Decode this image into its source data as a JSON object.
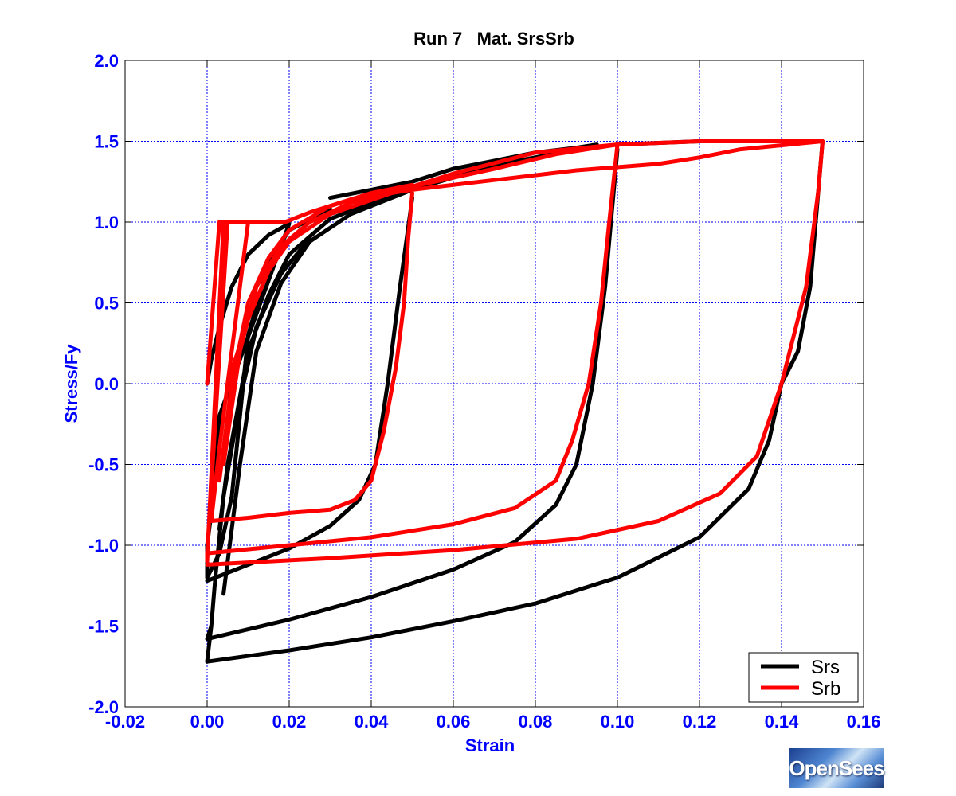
{
  "chart_data": {
    "type": "line",
    "title": "Run 7   Mat. SrsSrb",
    "xlabel": "Strain",
    "ylabel": "Stress/Fy",
    "xlim": [
      -0.02,
      0.16
    ],
    "ylim": [
      -2.0,
      2.0
    ],
    "xticks": [
      -0.02,
      0.0,
      0.02,
      0.04,
      0.06,
      0.08,
      0.1,
      0.12,
      0.14,
      0.16
    ],
    "xtick_labels": [
      "-0.02",
      "0.00",
      "0.02",
      "0.04",
      "0.06",
      "0.08",
      "0.10",
      "0.12",
      "0.14",
      "0.16"
    ],
    "yticks": [
      -2.0,
      -1.5,
      -1.0,
      -0.5,
      0.0,
      0.5,
      1.0,
      1.5,
      2.0
    ],
    "ytick_labels": [
      "-2.0",
      "-1.5",
      "-1.0",
      "-0.5",
      "0.0",
      "0.5",
      "1.0",
      "1.5",
      "2.0"
    ],
    "grid": true,
    "legend_position": "bottom-right",
    "series": [
      {
        "name": "Srs",
        "color": "#000000",
        "segments": [
          [
            [
              0.0,
              0.0
            ],
            [
              0.001,
              0.15
            ],
            [
              0.003,
              0.35
            ],
            [
              0.006,
              0.6
            ],
            [
              0.01,
              0.8
            ],
            [
              0.015,
              0.92
            ],
            [
              0.02,
              0.99
            ],
            [
              0.003,
              -0.2
            ],
            [
              0.001,
              -0.8
            ],
            [
              0.0,
              -1.0
            ],
            [
              0.0,
              -1.12
            ],
            [
              0.0,
              -1.2
            ],
            [
              0.003,
              -1.05
            ],
            [
              0.006,
              -0.7
            ],
            [
              0.01,
              0.3
            ],
            [
              0.015,
              0.75
            ],
            [
              0.02,
              0.95
            ],
            [
              0.03,
              1.08
            ]
          ],
          [
            [
              0.0,
              -1.22
            ],
            [
              0.01,
              -1.12
            ],
            [
              0.02,
              -1.02
            ],
            [
              0.03,
              -0.88
            ],
            [
              0.037,
              -0.72
            ],
            [
              0.041,
              -0.5
            ],
            [
              0.044,
              0.0
            ],
            [
              0.047,
              0.6
            ],
            [
              0.05,
              1.15
            ]
          ],
          [
            [
              0.03,
              1.15
            ],
            [
              0.04,
              1.2
            ],
            [
              0.05,
              1.25
            ],
            [
              0.06,
              1.33
            ],
            [
              0.07,
              1.38
            ],
            [
              0.08,
              1.43
            ],
            [
              0.09,
              1.46
            ],
            [
              0.095,
              1.48
            ]
          ],
          [
            [
              0.003,
              -0.9
            ],
            [
              0.005,
              -0.5
            ],
            [
              0.01,
              0.2
            ],
            [
              0.015,
              0.55
            ],
            [
              0.02,
              0.8
            ],
            [
              0.03,
              1.02
            ],
            [
              0.04,
              1.12
            ],
            [
              0.05,
              1.22
            ]
          ],
          [
            [
              0.001,
              -1.5
            ],
            [
              0.0,
              -1.58
            ],
            [
              0.02,
              -1.46
            ],
            [
              0.04,
              -1.32
            ],
            [
              0.06,
              -1.15
            ],
            [
              0.075,
              -0.98
            ],
            [
              0.085,
              -0.75
            ],
            [
              0.09,
              -0.5
            ],
            [
              0.094,
              0.0
            ],
            [
              0.097,
              0.6
            ],
            [
              0.1,
              1.45
            ]
          ],
          [
            [
              0.004,
              -1.3
            ],
            [
              0.008,
              -0.5
            ],
            [
              0.012,
              0.2
            ],
            [
              0.018,
              0.62
            ],
            [
              0.025,
              0.88
            ],
            [
              0.035,
              1.05
            ],
            [
              0.05,
              1.2
            ],
            [
              0.07,
              1.35
            ],
            [
              0.09,
              1.45
            ],
            [
              0.1,
              1.48
            ],
            [
              0.12,
              1.5
            ],
            [
              0.15,
              1.5
            ]
          ],
          [
            [
              0.15,
              1.5
            ],
            [
              0.149,
              1.2
            ],
            [
              0.147,
              0.6
            ],
            [
              0.144,
              0.2
            ],
            [
              0.14,
              0.0
            ],
            [
              0.137,
              -0.35
            ],
            [
              0.132,
              -0.65
            ],
            [
              0.12,
              -0.95
            ],
            [
              0.1,
              -1.2
            ],
            [
              0.08,
              -1.36
            ],
            [
              0.06,
              -1.47
            ],
            [
              0.04,
              -1.57
            ],
            [
              0.02,
              -1.65
            ],
            [
              0.0,
              -1.72
            ]
          ],
          [
            [
              0.0,
              -1.72
            ],
            [
              0.001,
              -1.5
            ],
            [
              0.002,
              -1.2
            ],
            [
              0.004,
              -0.7
            ],
            [
              0.008,
              -0.1
            ],
            [
              0.012,
              0.35
            ],
            [
              0.018,
              0.68
            ],
            [
              0.025,
              0.9
            ]
          ]
        ]
      },
      {
        "name": "Srb",
        "color": "#ff0000",
        "segments": [
          [
            [
              0.0,
              0.0
            ],
            [
              0.003,
              1.0
            ],
            [
              0.005,
              1.0
            ],
            [
              0.0,
              -1.05
            ],
            [
              0.0,
              -1.1
            ],
            [
              0.004,
              1.0
            ],
            [
              0.01,
              1.0
            ],
            [
              0.012,
              1.0
            ],
            [
              0.019,
              1.0
            ]
          ],
          [
            [
              0.01,
              1.0
            ],
            [
              0.003,
              -0.4
            ],
            [
              0.001,
              -0.85
            ],
            [
              0.01,
              -0.83
            ],
            [
              0.02,
              -0.8
            ],
            [
              0.03,
              -0.78
            ],
            [
              0.036,
              -0.72
            ],
            [
              0.04,
              -0.6
            ],
            [
              0.043,
              -0.3
            ],
            [
              0.046,
              0.1
            ],
            [
              0.048,
              0.5
            ],
            [
              0.049,
              0.9
            ],
            [
              0.05,
              1.18
            ]
          ],
          [
            [
              0.0,
              -1.05
            ],
            [
              0.02,
              -1.0
            ],
            [
              0.04,
              -0.95
            ],
            [
              0.06,
              -0.87
            ],
            [
              0.075,
              -0.77
            ],
            [
              0.085,
              -0.6
            ],
            [
              0.089,
              -0.35
            ],
            [
              0.093,
              0.0
            ],
            [
              0.096,
              0.5
            ],
            [
              0.098,
              1.0
            ],
            [
              0.1,
              1.48
            ]
          ],
          [
            [
              0.0,
              -1.12
            ],
            [
              0.03,
              -1.08
            ],
            [
              0.06,
              -1.03
            ],
            [
              0.09,
              -0.96
            ],
            [
              0.11,
              -0.85
            ],
            [
              0.125,
              -0.68
            ],
            [
              0.134,
              -0.45
            ],
            [
              0.14,
              0.0
            ],
            [
              0.146,
              0.6
            ],
            [
              0.149,
              1.2
            ],
            [
              0.15,
              1.5
            ]
          ],
          [
            [
              0.019,
              1.0
            ],
            [
              0.025,
              1.06
            ],
            [
              0.035,
              1.14
            ],
            [
              0.05,
              1.2
            ],
            [
              0.07,
              1.26
            ],
            [
              0.09,
              1.32
            ],
            [
              0.11,
              1.36
            ],
            [
              0.12,
              1.4
            ],
            [
              0.13,
              1.45
            ],
            [
              0.15,
              1.5
            ]
          ],
          [
            [
              0.003,
              -0.6
            ],
            [
              0.006,
              0.0
            ],
            [
              0.01,
              0.5
            ],
            [
              0.015,
              0.78
            ],
            [
              0.02,
              0.95
            ],
            [
              0.03,
              1.1
            ],
            [
              0.04,
              1.18
            ],
            [
              0.05,
              1.23
            ]
          ],
          [
            [
              0.004,
              -0.5
            ],
            [
              0.008,
              0.2
            ],
            [
              0.012,
              0.6
            ],
            [
              0.018,
              0.85
            ],
            [
              0.025,
              1.0
            ],
            [
              0.035,
              1.12
            ],
            [
              0.05,
              1.22
            ],
            [
              0.07,
              1.33
            ],
            [
              0.085,
              1.42
            ],
            [
              0.1,
              1.48
            ]
          ],
          [
            [
              0.005,
              0.0
            ],
            [
              0.01,
              0.4
            ],
            [
              0.015,
              0.7
            ],
            [
              0.02,
              0.88
            ],
            [
              0.03,
              1.05
            ],
            [
              0.045,
              1.18
            ],
            [
              0.06,
              1.3
            ],
            [
              0.08,
              1.43
            ],
            [
              0.1,
              1.48
            ],
            [
              0.12,
              1.5
            ],
            [
              0.15,
              1.5
            ]
          ]
        ]
      }
    ]
  },
  "logo_text": "OpenSees"
}
